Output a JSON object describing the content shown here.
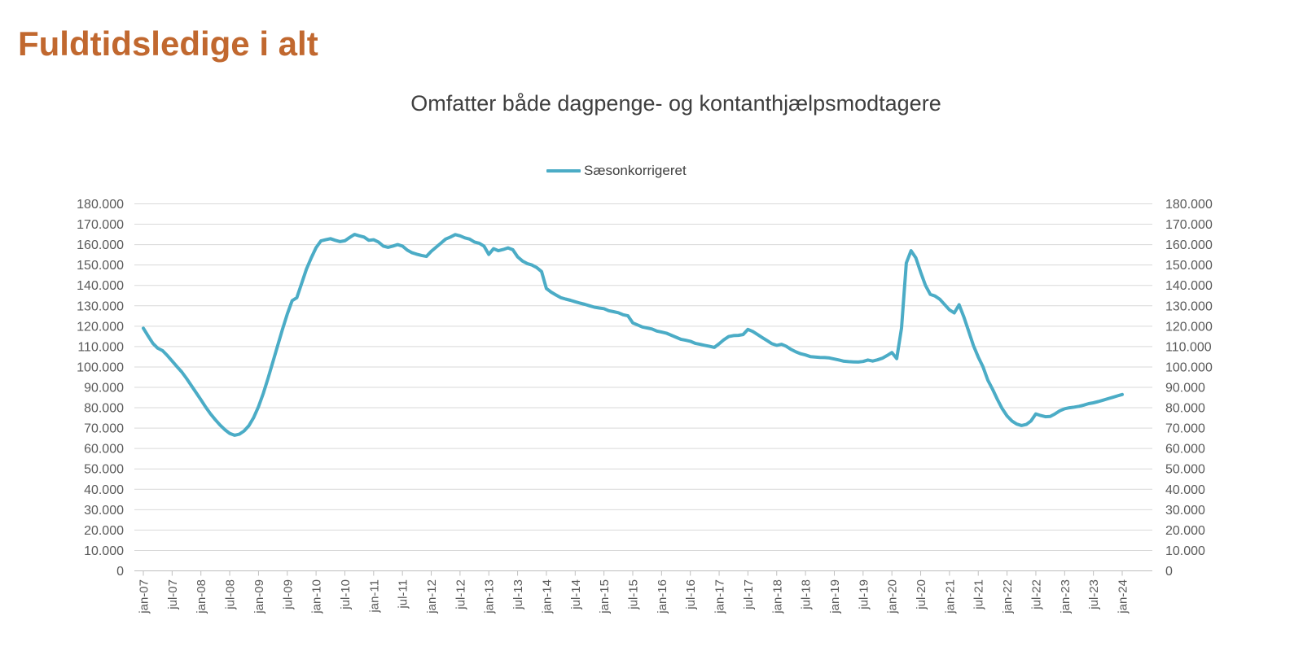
{
  "page": {
    "title": "Fuldtidsledige i alt"
  },
  "colors": {
    "page_title": "#C1682F",
    "chart_title": "#3F3F3F",
    "line": "#4BACC6",
    "grid": "#D9D9D9",
    "axis": "#BFBFBF",
    "tick_label": "#595959",
    "legend_label": "#404040",
    "background": "#FFFFFF"
  },
  "chart_data": {
    "type": "line",
    "title": "Omfatter både dagpenge- og kontanthjælpsmodtagere",
    "legend_position": "top-center",
    "grid": "horizontal",
    "frequency": "monthly",
    "x_start": "jan-07",
    "x_end": "jan-24",
    "ylim": [
      0,
      180000
    ],
    "y_tick_step": 10000,
    "y_tick_labels": [
      "180.000",
      "170.000",
      "160.000",
      "150.000",
      "140.000",
      "130.000",
      "120.000",
      "110.000",
      "100.000",
      "90.000",
      "80.000",
      "70.000",
      "60.000",
      "50.000",
      "40.000",
      "30.000",
      "20.000",
      "10.000",
      "0"
    ],
    "x_tick_labels": [
      "jan-07",
      "jul-07",
      "jan-08",
      "jul-08",
      "jan-09",
      "jul-09",
      "jan-10",
      "jul-10",
      "jan-11",
      "jul-11",
      "jan-12",
      "jul-12",
      "jan-13",
      "jul-13",
      "jan-14",
      "jul-14",
      "jan-15",
      "jul-15",
      "jan-16",
      "jul-16",
      "jan-17",
      "jul-17",
      "jan-18",
      "jul-18",
      "jan-19",
      "jul-19",
      "jan-20",
      "jul-20",
      "jan-21",
      "jul-21",
      "jan-22",
      "jul-22",
      "jan-23",
      "jul-23",
      "jan-24"
    ],
    "series": [
      {
        "name": "Sæsonkorrigeret",
        "values": [
          119000,
          115200,
          111500,
          109200,
          108000,
          105600,
          102900,
          100200,
          97600,
          94400,
          90900,
          87400,
          83900,
          80300,
          77000,
          74100,
          71500,
          69200,
          67400,
          66500,
          67000,
          68600,
          71200,
          75200,
          80500,
          87000,
          94500,
          102500,
          110500,
          118500,
          126000,
          132500,
          134000,
          141000,
          148000,
          153500,
          158500,
          161800,
          162400,
          162900,
          162100,
          161500,
          161900,
          163500,
          165000,
          164300,
          163700,
          162100,
          162400,
          161300,
          159300,
          158700,
          159300,
          160000,
          159300,
          157300,
          156000,
          155300,
          154700,
          154200,
          156700,
          158700,
          160700,
          162700,
          163700,
          164900,
          164300,
          163300,
          162700,
          161300,
          160700,
          159300,
          155200,
          158000,
          157000,
          157600,
          158400,
          157500,
          154000,
          152000,
          150700,
          150000,
          148700,
          146800,
          138500,
          136700,
          135300,
          134000,
          133300,
          132700,
          132000,
          131300,
          130700,
          130000,
          129300,
          128900,
          128600,
          127600,
          127100,
          126600,
          125600,
          125100,
          121600,
          120600,
          119600,
          119100,
          118600,
          117600,
          117100,
          116600,
          115600,
          114600,
          113600,
          113100,
          112600,
          111600,
          111100,
          110600,
          110100,
          109600,
          111400,
          113400,
          114900,
          115400,
          115500,
          115900,
          118400,
          117400,
          115900,
          114400,
          112900,
          111400,
          110600,
          111100,
          110100,
          108600,
          107400,
          106500,
          105900,
          105100,
          104900,
          104700,
          104600,
          104400,
          103900,
          103400,
          102800,
          102600,
          102500,
          102400,
          102700,
          103400,
          102900,
          103500,
          104300,
          105600,
          107100,
          104100,
          119000,
          151000,
          157000,
          153500,
          146500,
          140000,
          135600,
          134800,
          133200,
          130600,
          128000,
          126500,
          130500,
          124500,
          117500,
          110500,
          104900,
          100000,
          93500,
          89000,
          84000,
          79500,
          76000,
          73500,
          72000,
          71300,
          71800,
          73500,
          77000,
          76200,
          75600,
          75700,
          77000,
          78500,
          79500,
          80000,
          80300,
          80700,
          81300,
          82000,
          82400,
          83000,
          83700,
          84400,
          85100,
          85800,
          86500
        ]
      }
    ]
  }
}
